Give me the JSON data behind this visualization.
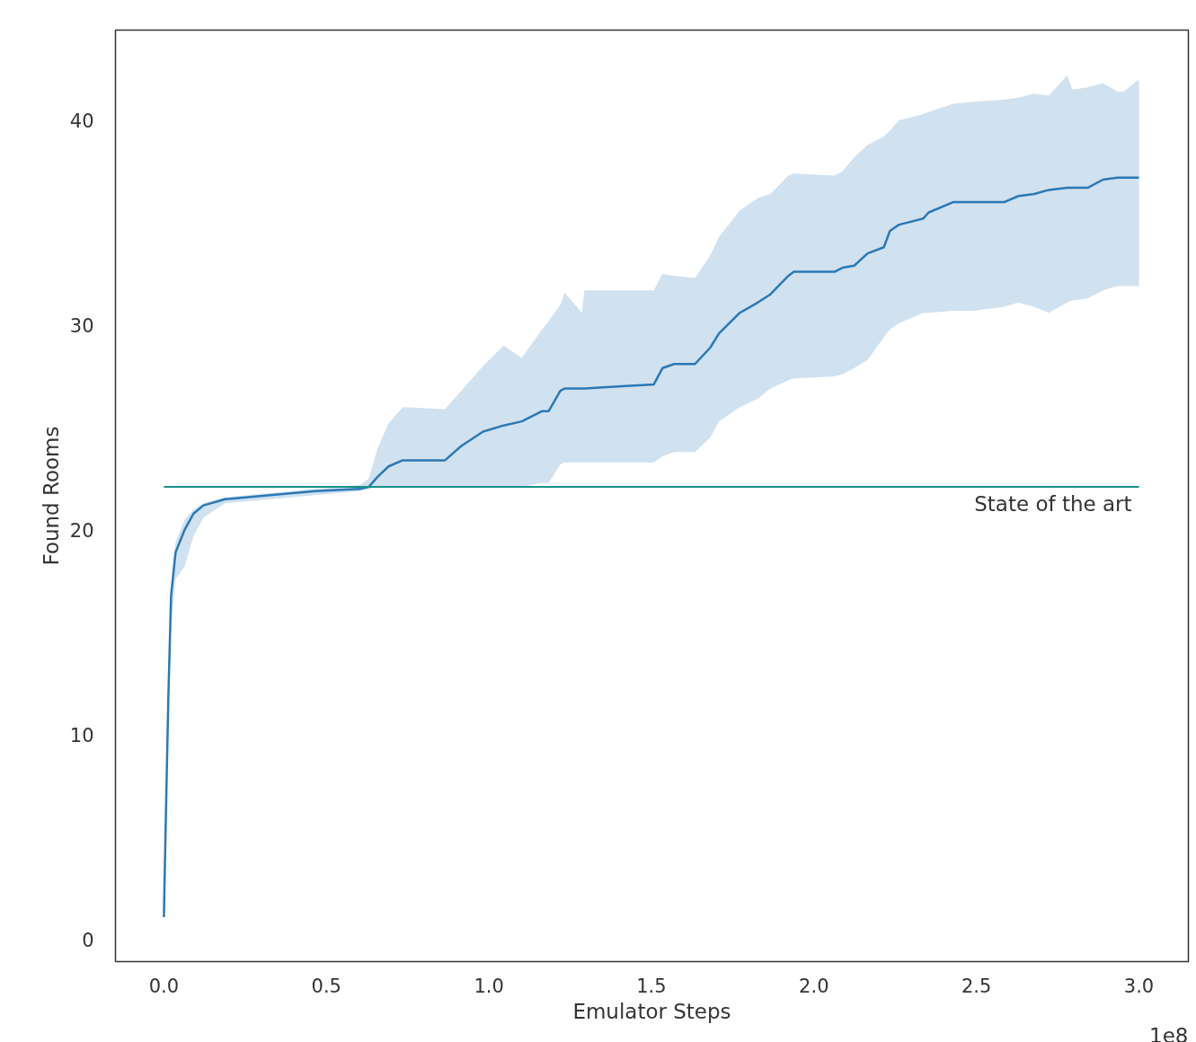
{
  "chart_data": {
    "type": "line",
    "xlabel": "Emulator Steps",
    "ylabel": "Found Rooms",
    "annotations": [
      "1e8"
    ],
    "x": [
      0,
      0.0055,
      0.0138,
      0.0221,
      0.0359,
      0.0636,
      0.0912,
      0.1217,
      0.188,
      0.326,
      0.465,
      0.603,
      0.63,
      0.658,
      0.691,
      0.735,
      0.865,
      0.915,
      0.982,
      1.045,
      1.101,
      1.164,
      1.184,
      1.22,
      1.233,
      1.286,
      1.294,
      1.396,
      1.507,
      1.534,
      1.57,
      1.634,
      1.681,
      1.708,
      1.772,
      1.827,
      1.866,
      1.921,
      1.938,
      2.063,
      2.088,
      2.124,
      2.165,
      2.215,
      2.234,
      2.262,
      2.336,
      2.353,
      2.428,
      2.491,
      2.585,
      2.629,
      2.677,
      2.723,
      2.779,
      2.795,
      2.842,
      2.889,
      2.934,
      2.953,
      3.0
    ],
    "series": [
      {
        "color": "#2a78b6",
        "values": [
          1.1,
          5.6,
          11.9,
          16.8,
          18.9,
          20.0,
          20.8,
          21.2,
          21.5,
          21.7,
          21.9,
          22.0,
          22.1,
          22.6,
          23.1,
          23.4,
          23.4,
          24.1,
          24.8,
          25.1,
          25.3,
          25.8,
          25.8,
          26.8,
          26.9,
          26.9,
          26.9,
          27.0,
          27.1,
          27.9,
          28.1,
          28.1,
          28.9,
          29.6,
          30.6,
          31.1,
          31.5,
          32.4,
          32.6,
          32.6,
          32.8,
          32.9,
          33.5,
          33.8,
          34.6,
          34.9,
          35.2,
          35.5,
          36.0,
          36.0,
          36.0,
          36.3,
          36.4,
          36.6,
          36.7,
          36.7,
          36.7,
          37.1,
          37.2,
          37.2,
          37.2
        ],
        "lower": [
          0.9,
          5.0,
          11.0,
          15.5,
          17.6,
          18.2,
          19.7,
          20.6,
          21.3,
          21.5,
          21.7,
          21.9,
          22.0,
          22.1,
          22.1,
          22.1,
          22.1,
          22.1,
          22.1,
          22.1,
          22.1,
          22.3,
          22.3,
          23.2,
          23.3,
          23.3,
          23.3,
          23.3,
          23.3,
          23.6,
          23.8,
          23.8,
          24.5,
          25.3,
          26.0,
          26.4,
          26.9,
          27.3,
          27.4,
          27.5,
          27.6,
          27.9,
          28.3,
          29.4,
          29.8,
          30.1,
          30.6,
          30.6,
          30.7,
          30.7,
          30.9,
          31.1,
          30.9,
          30.6,
          31.1,
          31.2,
          31.3,
          31.7,
          31.9,
          31.9,
          31.9
        ],
        "upper": [
          1.2,
          6.2,
          12.8,
          17.3,
          19.4,
          20.5,
          21.0,
          21.3,
          21.6,
          21.8,
          22.0,
          22.2,
          22.5,
          24.0,
          25.2,
          26.0,
          25.9,
          26.8,
          28.0,
          29.0,
          28.4,
          29.8,
          30.2,
          31.0,
          31.6,
          30.6,
          31.7,
          31.7,
          31.7,
          32.5,
          32.4,
          32.3,
          33.4,
          34.3,
          35.6,
          36.2,
          36.4,
          37.3,
          37.4,
          37.3,
          37.5,
          38.2,
          38.8,
          39.2,
          39.5,
          40.0,
          40.3,
          40.4,
          40.8,
          40.9,
          41.0,
          41.1,
          41.3,
          41.2,
          42.2,
          41.5,
          41.6,
          41.8,
          41.4,
          41.4,
          42.0
        ]
      }
    ],
    "ref_lines": [
      {
        "axis": "y",
        "value": 22.1,
        "label": "State of the art",
        "color": "#17918a"
      }
    ],
    "xlim": [
      -0.149,
      3.152
    ],
    "ylim": [
      -1.07,
      44.4
    ],
    "xticks": [
      {
        "value": 0,
        "label": "0.0"
      },
      0.5,
      {
        "value": 1,
        "label": "1.0"
      },
      1.5,
      {
        "value": 2,
        "label": "2.0"
      },
      2.5,
      {
        "value": 3,
        "label": "3.0"
      }
    ],
    "yticks": [
      0,
      10,
      20,
      30,
      40
    ],
    "line_style": "solid"
  }
}
